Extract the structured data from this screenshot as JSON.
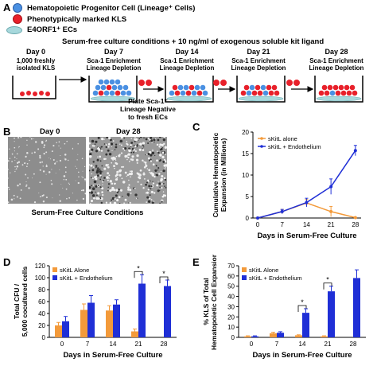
{
  "panel_a": {
    "letter": "A",
    "legend": [
      {
        "label": "Hematopoietic Progenitor Cell (Lineage⁺ Cells)",
        "icon": "blue-cell-icon",
        "color": "#4a90e2"
      },
      {
        "label": "Phenotypically marked KLS",
        "icon": "red-cell-icon",
        "color": "#e8202a"
      },
      {
        "label": "E4ORF1⁺ ECs",
        "icon": "endothelial-cell-icon",
        "color": "#a7d8dc"
      }
    ],
    "header": "Serum-free culture conditions + 10 ng/ml of exogenous soluble kit ligand",
    "stages": [
      {
        "day": "Day 0",
        "sub": "1,000 freshly isolated KLS"
      },
      {
        "day": "Day 7",
        "sub": "Sca-1 Enrichment Lineage Depletion"
      },
      {
        "day": "Day 14",
        "sub": "Sca-1 Enrichment Lineage Depletion"
      },
      {
        "day": "Day 21",
        "sub": "Sca-1 Enrichment Lineage Depletion"
      },
      {
        "day": "Day 28",
        "sub": "Sca-1 Enrichment Lineage Depletion"
      }
    ],
    "plate_note": "Plate Sca-1⁺ Lineage Negative to fresh ECs"
  },
  "panel_b": {
    "letter": "B",
    "day0": "Day 0",
    "day28": "Day 28",
    "caption": "Serum-Free Culture Conditions"
  },
  "colors": {
    "orange": "#f39a3a",
    "blue": "#1f2fd6",
    "red": "#e8202a"
  },
  "chart_data": [
    {
      "panel": "C",
      "type": "line",
      "xlabel": "Days in Serum-Free Culture",
      "ylabel": "Cumulative Hematopoietic Expansion (in Millions)",
      "x": [
        0,
        7,
        14,
        21,
        28
      ],
      "xticks": [
        "0",
        "7",
        "14",
        "21",
        "28"
      ],
      "yticks": [
        "0",
        "5",
        "10",
        "15",
        "20"
      ],
      "ylim": [
        0,
        20
      ],
      "series": [
        {
          "name": "sKitL alone",
          "color": "#f39a3a",
          "x": [
            0,
            7,
            14,
            21,
            28
          ],
          "y": [
            0,
            1.5,
            3.5,
            1.5,
            0.1
          ],
          "err": [
            0,
            0.5,
            0.8,
            1.2,
            0
          ]
        },
        {
          "name": "sKitL + Endothelium",
          "color": "#1f2fd6",
          "x": [
            0,
            7,
            14,
            21,
            28
          ],
          "y": [
            0,
            1.5,
            3.6,
            7.3,
            15.7
          ],
          "err": [
            0,
            0.5,
            1.0,
            1.8,
            1.2
          ]
        }
      ]
    },
    {
      "panel": "D",
      "type": "bar",
      "xlabel": "Days in Serum-Free Culture",
      "ylabel": "Total CFU / 5,000 cocultured cells",
      "categories": [
        "0",
        "7",
        "14",
        "21",
        "28"
      ],
      "yticks": [
        "0",
        "20",
        "40",
        "60",
        "80",
        "100",
        "120"
      ],
      "ylim": [
        0,
        120
      ],
      "series": [
        {
          "name": "sKitL Alone",
          "color": "#f39a3a",
          "values": [
            20,
            46,
            45,
            10,
            null
          ],
          "err": [
            5,
            10,
            8,
            4,
            null
          ]
        },
        {
          "name": "sKitL + Endothelium",
          "color": "#1f2fd6",
          "values": [
            27,
            58,
            55,
            90,
            86
          ],
          "err": [
            8,
            12,
            8,
            15,
            10
          ]
        }
      ],
      "annotations": [
        "*",
        "*"
      ]
    },
    {
      "panel": "E",
      "type": "bar",
      "xlabel": "Days in Serum-Free Culture",
      "ylabel": "% KLS of Total Hematopoietic Cell Expansion",
      "categories": [
        "0",
        "7",
        "14",
        "21",
        "28"
      ],
      "yticks": [
        "0",
        "10",
        "20",
        "30",
        "40",
        "50",
        "60",
        "70"
      ],
      "ylim": [
        0,
        70
      ],
      "series": [
        {
          "name": "sKitL Alone",
          "color": "#f39a3a",
          "values": [
            1,
            4,
            2,
            1,
            null
          ],
          "err": [
            0.5,
            1,
            0.5,
            0.5,
            null
          ]
        },
        {
          "name": "sKitL + Endothelium",
          "color": "#1f2fd6",
          "values": [
            1,
            4.5,
            24,
            45,
            58
          ],
          "err": [
            0.5,
            1,
            4,
            5,
            8
          ]
        }
      ],
      "annotations": [
        "*",
        "*"
      ]
    }
  ]
}
